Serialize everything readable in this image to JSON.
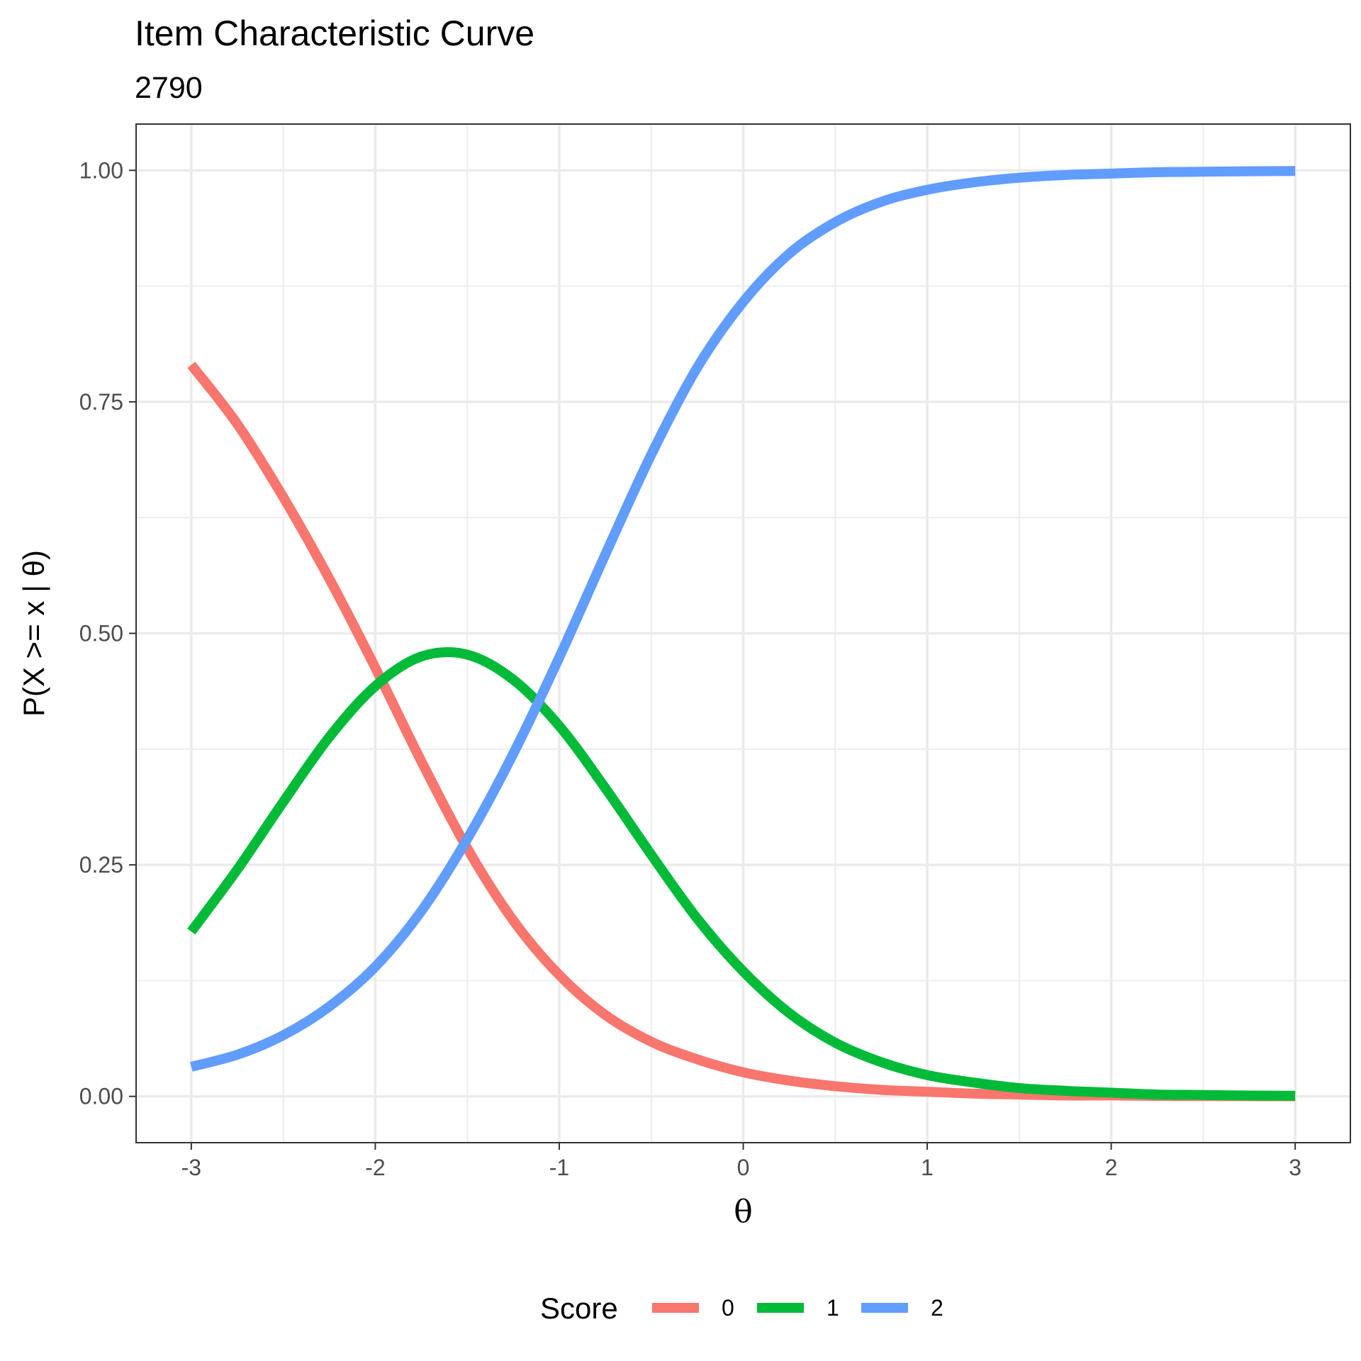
{
  "chart_data": {
    "type": "line",
    "title": "Item Characteristic Curve",
    "subtitle": "2790",
    "xlabel": "θ",
    "ylabel": "P(X >= x | θ)",
    "xlim": [
      -3.3,
      3.3
    ],
    "ylim": [
      -0.05,
      1.05
    ],
    "x_ticks": [
      -3,
      -2,
      -1,
      0,
      1,
      2,
      3
    ],
    "x_tick_labels": [
      "-3",
      "-2",
      "-1",
      "0",
      "1",
      "2",
      "3"
    ],
    "y_ticks": [
      0,
      0.25,
      0.5,
      0.75,
      1
    ],
    "y_tick_labels": [
      "0.00",
      "0.25",
      "0.50",
      "0.75",
      "1.00"
    ],
    "grid": true,
    "legend": {
      "title": "Score",
      "position": "bottom"
    },
    "x": [
      -3.0,
      -2.75,
      -2.5,
      -2.25,
      -2.0,
      -1.75,
      -1.5,
      -1.25,
      -1.0,
      -0.75,
      -0.5,
      -0.25,
      0.0,
      0.25,
      0.5,
      0.75,
      1.0,
      1.25,
      1.5,
      1.75,
      2.0,
      2.25,
      2.5,
      2.75,
      3.0
    ],
    "series": [
      {
        "name": "0",
        "color": "#F8766D",
        "values": [
          0.79,
          0.726,
          0.647,
          0.559,
          0.463,
          0.362,
          0.268,
          0.19,
          0.131,
          0.088,
          0.059,
          0.04,
          0.026,
          0.017,
          0.011,
          0.007,
          0.005,
          0.003,
          0.002,
          0.001,
          0.001,
          0.0005,
          0.0003,
          0.0002,
          0.0001
        ]
      },
      {
        "name": "1",
        "color": "#00BA38",
        "values": [
          0.178,
          0.245,
          0.318,
          0.388,
          0.443,
          0.475,
          0.477,
          0.45,
          0.4,
          0.333,
          0.261,
          0.192,
          0.135,
          0.09,
          0.058,
          0.037,
          0.023,
          0.015,
          0.009,
          0.006,
          0.004,
          0.002,
          0.0015,
          0.0009,
          0.0006
        ]
      },
      {
        "name": "2",
        "color": "#619CFF",
        "values": [
          0.032,
          0.045,
          0.066,
          0.097,
          0.14,
          0.2,
          0.278,
          0.37,
          0.474,
          0.585,
          0.693,
          0.787,
          0.858,
          0.91,
          0.944,
          0.966,
          0.979,
          0.987,
          0.992,
          0.995,
          0.9965,
          0.998,
          0.9985,
          0.999,
          0.9993
        ]
      }
    ]
  }
}
